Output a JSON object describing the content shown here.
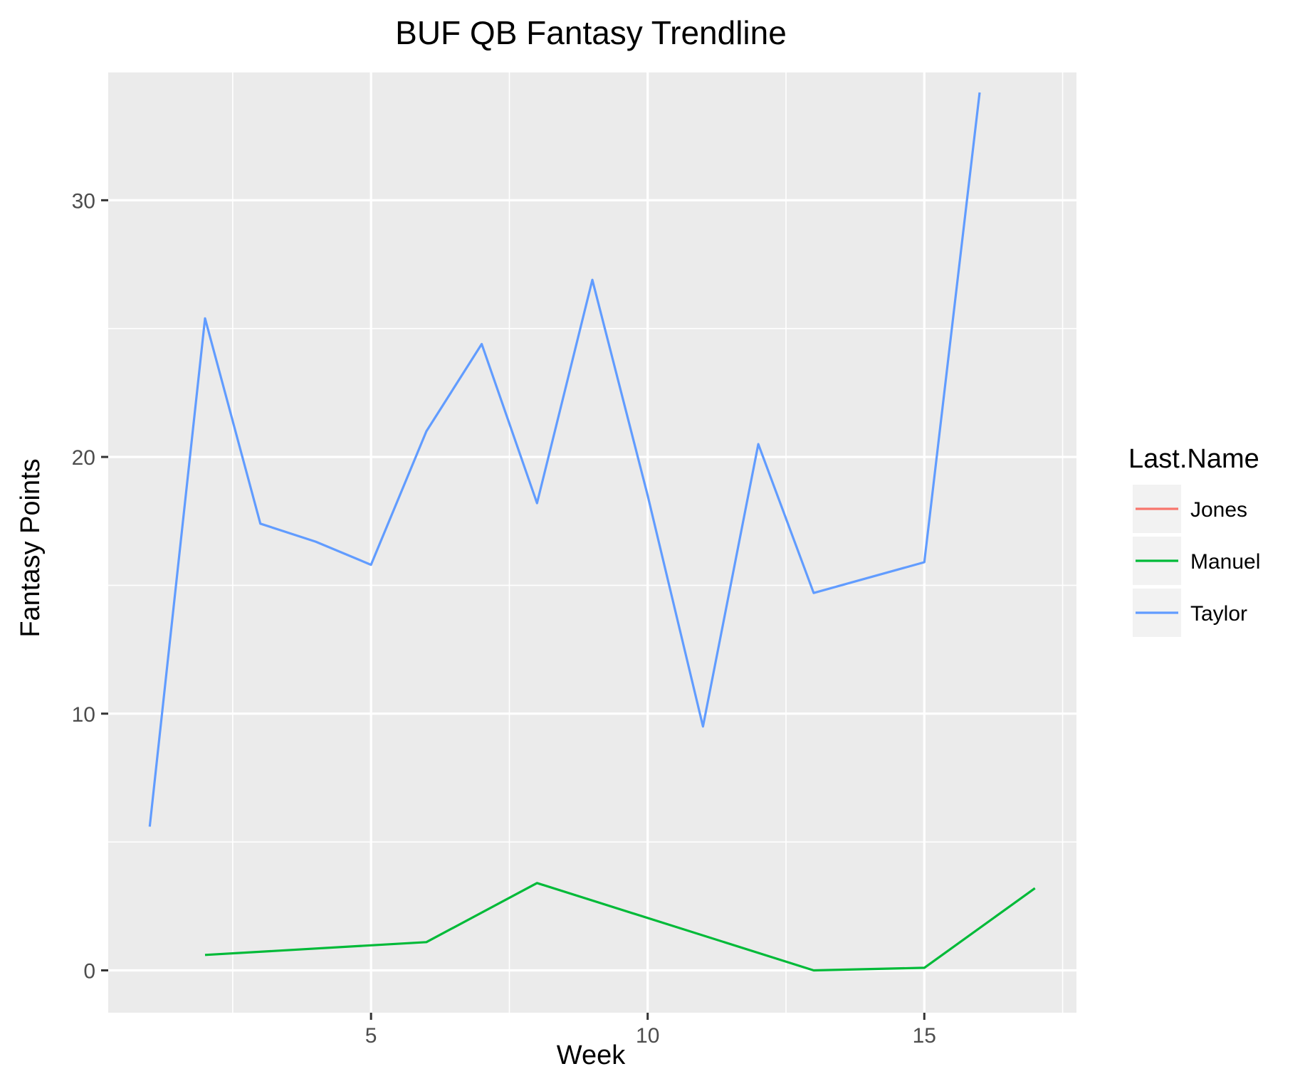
{
  "chart_data": {
    "type": "line",
    "title": "BUF QB Fantasy Trendline",
    "xlabel": "Week",
    "ylabel": "Fantasy Points",
    "xlim": [
      0.25,
      17.75
    ],
    "ylim": [
      -1.65,
      35.0
    ],
    "x_ticks": [
      5,
      10,
      15
    ],
    "y_ticks": [
      0,
      10,
      20,
      30
    ],
    "x_minor": [
      2.5,
      7.5,
      12.5,
      17.5
    ],
    "y_minor": [
      5,
      15,
      25,
      35
    ],
    "grid": true,
    "legend": {
      "title": "Last.Name",
      "position": "right"
    },
    "series": [
      {
        "name": "Jones",
        "color": "#F8766D",
        "x": [],
        "y": []
      },
      {
        "name": "Manuel",
        "color": "#00BA38",
        "x": [
          2,
          6,
          8,
          13,
          15,
          17
        ],
        "y": [
          0.6,
          1.1,
          3.4,
          0.0,
          0.1,
          3.2
        ]
      },
      {
        "name": "Taylor",
        "color": "#619CFF",
        "x": [
          1,
          2,
          3,
          4,
          5,
          6,
          7,
          8,
          9,
          10,
          11,
          12,
          13,
          14,
          15,
          16
        ],
        "y": [
          5.6,
          25.4,
          17.4,
          16.7,
          15.8,
          21.0,
          24.4,
          18.2,
          26.9,
          18.5,
          9.5,
          20.5,
          14.7,
          15.3,
          15.9,
          34.2
        ]
      }
    ]
  }
}
